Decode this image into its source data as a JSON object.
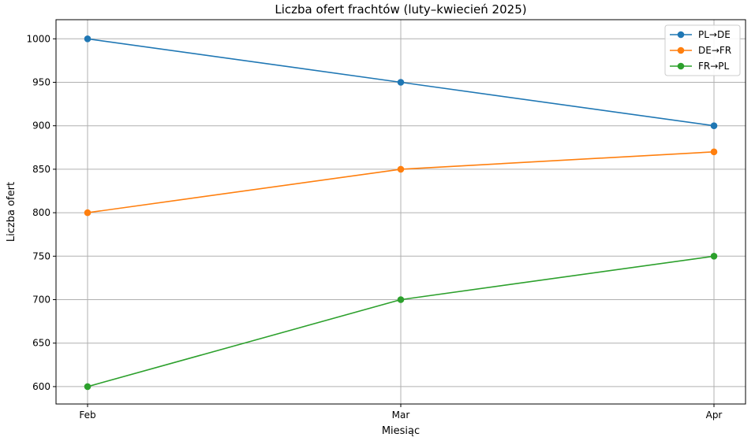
{
  "chart_data": {
    "type": "line",
    "title": "Liczba ofert frachtów (luty–kwiecień 2025)",
    "xlabel": "Miesiąc",
    "ylabel": "Liczba ofert",
    "categories": [
      "Feb",
      "Mar",
      "Apr"
    ],
    "ylim": [
      580,
      1022
    ],
    "yticks": [
      600,
      650,
      700,
      750,
      800,
      850,
      900,
      950,
      1000
    ],
    "grid": true,
    "legend_position": "top-right",
    "series": [
      {
        "name": "PL→DE",
        "color": "#1f77b4",
        "values": [
          1000,
          950,
          900
        ]
      },
      {
        "name": "DE→FR",
        "color": "#ff7f0e",
        "values": [
          800,
          850,
          870
        ]
      },
      {
        "name": "FR→PL",
        "color": "#2ca02c",
        "values": [
          600,
          700,
          750
        ]
      }
    ]
  }
}
